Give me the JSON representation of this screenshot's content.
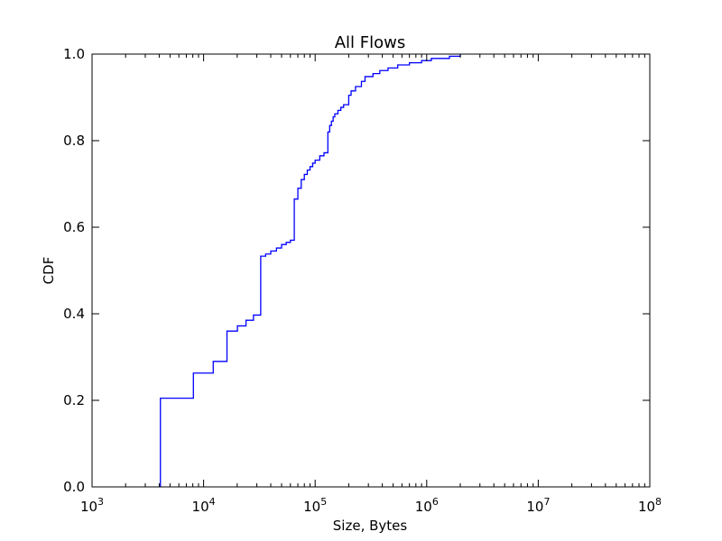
{
  "chart_data": {
    "type": "line",
    "title": "All Flows",
    "xlabel": "Size, Bytes",
    "ylabel": "CDF",
    "x_scale": "log",
    "xlim": [
      1000,
      100000000
    ],
    "ylim": [
      0.0,
      1.0
    ],
    "grid": false,
    "x_ticks": [
      {
        "base": "10",
        "exp": "3",
        "value": 1000
      },
      {
        "base": "10",
        "exp": "4",
        "value": 10000
      },
      {
        "base": "10",
        "exp": "5",
        "value": 100000
      },
      {
        "base": "10",
        "exp": "6",
        "value": 1000000
      },
      {
        "base": "10",
        "exp": "7",
        "value": 10000000
      },
      {
        "base": "10",
        "exp": "8",
        "value": 100000000
      }
    ],
    "y_ticks": [
      {
        "label": "0.0",
        "value": 0.0
      },
      {
        "label": "0.2",
        "value": 0.2
      },
      {
        "label": "0.4",
        "value": 0.4
      },
      {
        "label": "0.6",
        "value": 0.6
      },
      {
        "label": "0.8",
        "value": 0.8
      },
      {
        "label": "1.0",
        "value": 1.0
      }
    ],
    "series": [
      {
        "color": "#0000ff",
        "drawstyle": "steps-post",
        "points": [
          [
            4100,
            0.0
          ],
          [
            4100,
            0.205
          ],
          [
            8100,
            0.205
          ],
          [
            8100,
            0.263
          ],
          [
            12200,
            0.263
          ],
          [
            12200,
            0.29
          ],
          [
            16200,
            0.29
          ],
          [
            16200,
            0.36
          ],
          [
            20100,
            0.36
          ],
          [
            20100,
            0.372
          ],
          [
            24000,
            0.372
          ],
          [
            24000,
            0.385
          ],
          [
            28000,
            0.385
          ],
          [
            28000,
            0.397
          ],
          [
            32500,
            0.397
          ],
          [
            32500,
            0.533
          ],
          [
            36000,
            0.533
          ],
          [
            36000,
            0.538
          ],
          [
            40000,
            0.538
          ],
          [
            40000,
            0.545
          ],
          [
            45000,
            0.545
          ],
          [
            45000,
            0.552
          ],
          [
            50000,
            0.552
          ],
          [
            50000,
            0.56
          ],
          [
            55000,
            0.56
          ],
          [
            55000,
            0.565
          ],
          [
            60000,
            0.565
          ],
          [
            60000,
            0.57
          ],
          [
            65000,
            0.57
          ],
          [
            65000,
            0.665
          ],
          [
            70000,
            0.665
          ],
          [
            70000,
            0.69
          ],
          [
            75000,
            0.69
          ],
          [
            75000,
            0.71
          ],
          [
            80000,
            0.71
          ],
          [
            80000,
            0.722
          ],
          [
            85000,
            0.722
          ],
          [
            85000,
            0.732
          ],
          [
            90000,
            0.732
          ],
          [
            90000,
            0.74
          ],
          [
            95000,
            0.74
          ],
          [
            95000,
            0.748
          ],
          [
            100000,
            0.748
          ],
          [
            100000,
            0.755
          ],
          [
            110000,
            0.755
          ],
          [
            110000,
            0.765
          ],
          [
            120000,
            0.765
          ],
          [
            120000,
            0.772
          ],
          [
            130000,
            0.772
          ],
          [
            130000,
            0.82
          ],
          [
            135000,
            0.82
          ],
          [
            135000,
            0.835
          ],
          [
            140000,
            0.835
          ],
          [
            140000,
            0.845
          ],
          [
            145000,
            0.845
          ],
          [
            145000,
            0.855
          ],
          [
            150000,
            0.855
          ],
          [
            150000,
            0.862
          ],
          [
            160000,
            0.862
          ],
          [
            160000,
            0.87
          ],
          [
            170000,
            0.87
          ],
          [
            170000,
            0.877
          ],
          [
            180000,
            0.877
          ],
          [
            180000,
            0.883
          ],
          [
            200000,
            0.883
          ],
          [
            200000,
            0.905
          ],
          [
            210000,
            0.905
          ],
          [
            210000,
            0.915
          ],
          [
            230000,
            0.915
          ],
          [
            230000,
            0.925
          ],
          [
            260000,
            0.925
          ],
          [
            260000,
            0.937
          ],
          [
            280000,
            0.937
          ],
          [
            280000,
            0.948
          ],
          [
            330000,
            0.948
          ],
          [
            330000,
            0.955
          ],
          [
            380000,
            0.955
          ],
          [
            380000,
            0.962
          ],
          [
            450000,
            0.962
          ],
          [
            450000,
            0.968
          ],
          [
            550000,
            0.968
          ],
          [
            550000,
            0.975
          ],
          [
            700000,
            0.975
          ],
          [
            700000,
            0.98
          ],
          [
            900000,
            0.98
          ],
          [
            900000,
            0.985
          ],
          [
            1100000,
            0.985
          ],
          [
            1100000,
            0.99
          ],
          [
            1600000,
            0.99
          ],
          [
            1600000,
            0.995
          ],
          [
            2000000,
            0.995
          ],
          [
            2000000,
            1.0
          ]
        ]
      }
    ]
  }
}
